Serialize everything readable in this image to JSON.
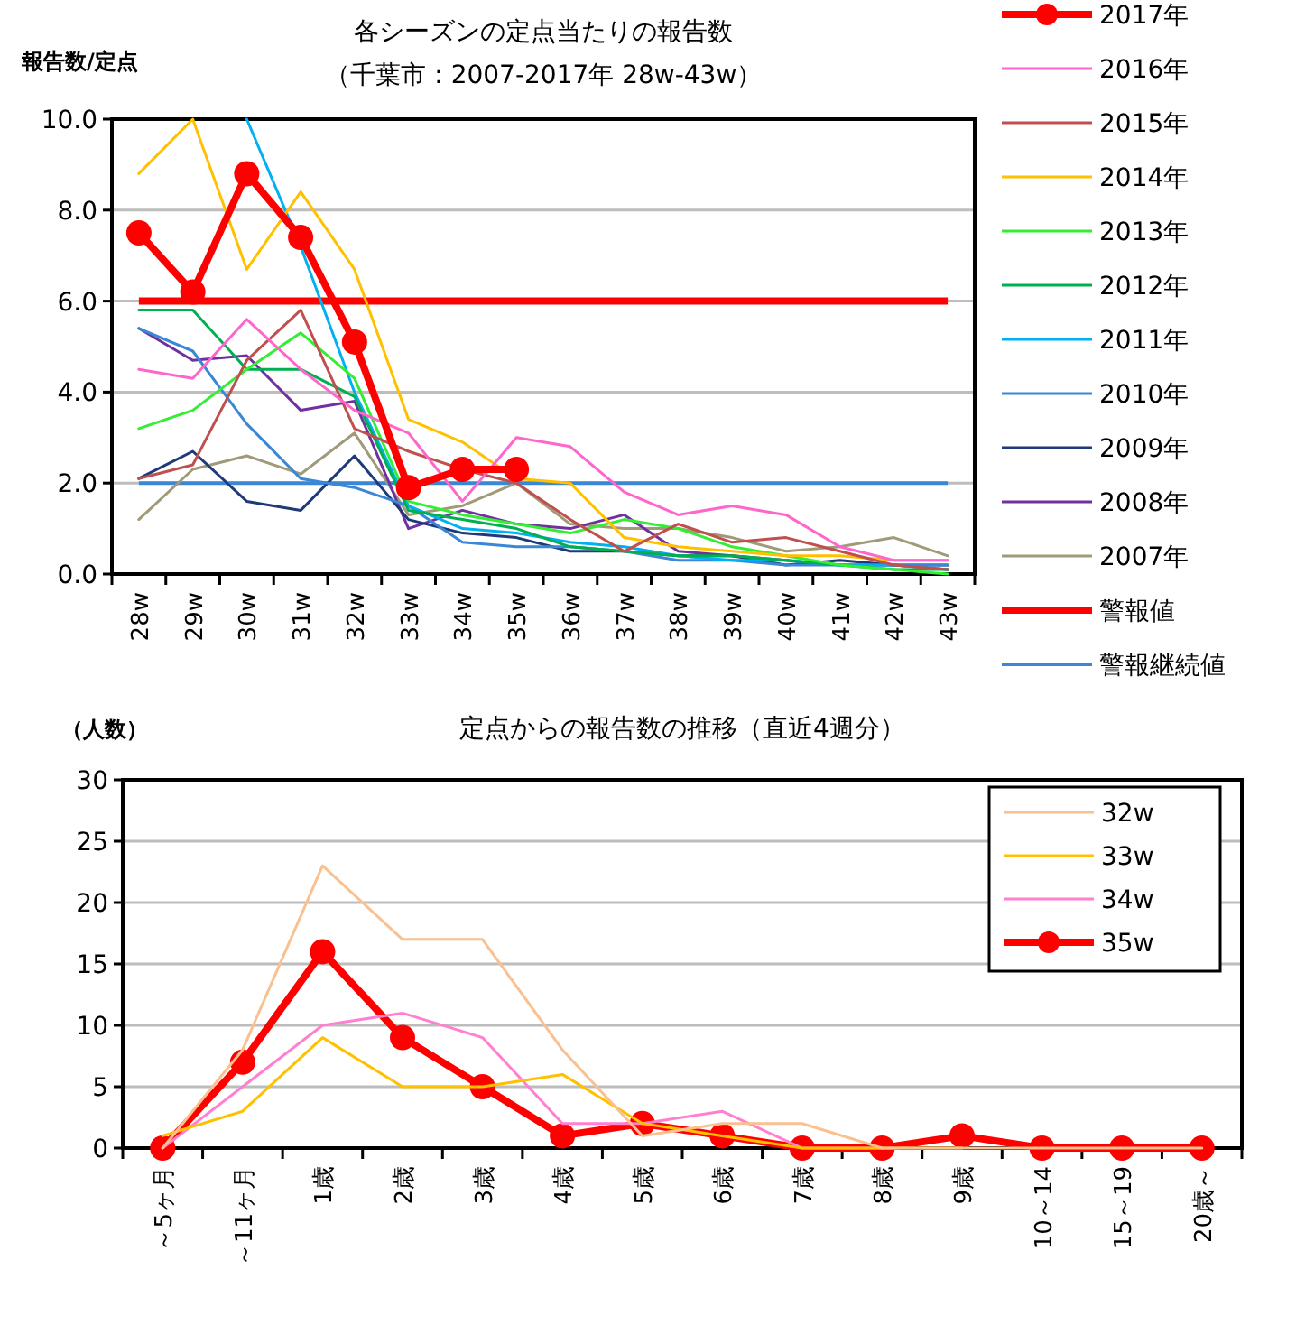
{
  "chart_data": [
    {
      "type": "line",
      "title": "各シーズンの定点当たりの報告数",
      "subtitle": "（千葉市：2007-2017年 28w-43w）",
      "ylabel": "報告数/定点",
      "categories": [
        "28w",
        "29w",
        "30w",
        "31w",
        "32w",
        "33w",
        "34w",
        "35w",
        "36w",
        "37w",
        "38w",
        "39w",
        "40w",
        "41w",
        "42w",
        "43w"
      ],
      "ylim": [
        0,
        10
      ],
      "yticks": [
        {
          "value": 0,
          "label": "0.0"
        },
        {
          "value": 2,
          "label": "2.0"
        },
        {
          "value": 4,
          "label": "4.0"
        },
        {
          "value": 6,
          "label": "6.0"
        },
        {
          "value": 8,
          "label": "8.0"
        },
        {
          "value": 10,
          "label": "10.0"
        }
      ],
      "grid": "y",
      "legend": "right",
      "series": [
        {
          "name": "2017年",
          "color": "#ff0000",
          "marker": "circle",
          "values": [
            7.5,
            6.2,
            8.8,
            7.4,
            5.1,
            1.9,
            2.3,
            2.3,
            null,
            null,
            null,
            null,
            null,
            null,
            null,
            null
          ]
        },
        {
          "name": "2016年",
          "color": "#ff66cc",
          "marker": "none",
          "values": [
            4.5,
            4.3,
            5.6,
            4.5,
            3.6,
            3.1,
            1.6,
            3.0,
            2.8,
            1.8,
            1.3,
            1.5,
            1.3,
            0.6,
            0.3,
            0.3
          ]
        },
        {
          "name": "2015年",
          "color": "#c0504d",
          "marker": "none",
          "values": [
            2.1,
            2.4,
            4.7,
            5.8,
            3.2,
            2.7,
            2.3,
            2.0,
            1.2,
            0.5,
            1.1,
            0.7,
            0.8,
            0.5,
            0.2,
            0.1
          ]
        },
        {
          "name": "2014年",
          "color": "#ffc000",
          "marker": "none",
          "values": [
            8.8,
            10.0,
            6.7,
            8.4,
            6.7,
            3.4,
            2.9,
            2.1,
            2.0,
            0.8,
            0.6,
            0.5,
            0.4,
            0.4,
            0.3,
            0.3
          ]
        },
        {
          "name": "2013年",
          "color": "#33ee33",
          "marker": "none",
          "values": [
            3.2,
            3.6,
            4.5,
            5.3,
            4.3,
            1.6,
            1.3,
            1.1,
            0.9,
            1.2,
            1.0,
            0.6,
            0.4,
            0.2,
            0.1,
            0.0
          ]
        },
        {
          "name": "2012年",
          "color": "#00b050",
          "marker": "none",
          "values": [
            5.8,
            5.8,
            4.5,
            4.5,
            3.9,
            1.4,
            1.2,
            1.0,
            0.6,
            0.5,
            0.4,
            0.4,
            0.3,
            0.2,
            0.1,
            0.1
          ]
        },
        {
          "name": "2011年",
          "color": "#00b0f0",
          "marker": "none",
          "values": [
            null,
            null,
            10.0,
            7.2,
            4.0,
            1.5,
            1.0,
            0.9,
            0.7,
            0.6,
            0.4,
            0.3,
            0.3,
            0.2,
            0.2,
            0.1
          ]
        },
        {
          "name": "2010年",
          "color": "#3a87d6",
          "marker": "none",
          "values": [
            5.4,
            4.9,
            3.3,
            2.1,
            1.9,
            1.5,
            0.7,
            0.6,
            0.6,
            0.5,
            0.3,
            0.3,
            0.2,
            0.2,
            0.2,
            0.2
          ]
        },
        {
          "name": "2009年",
          "color": "#1f3a78",
          "marker": "none",
          "values": [
            2.1,
            2.7,
            1.6,
            1.4,
            2.6,
            1.2,
            0.9,
            0.8,
            0.5,
            0.5,
            0.4,
            0.4,
            0.2,
            0.3,
            0.2,
            0.2
          ]
        },
        {
          "name": "2008年",
          "color": "#7030a0",
          "marker": "none",
          "values": [
            5.4,
            4.7,
            4.8,
            3.6,
            3.8,
            1.0,
            1.4,
            1.1,
            1.0,
            1.3,
            0.5,
            0.4,
            0.3,
            0.2,
            0.2,
            0.1
          ]
        },
        {
          "name": "2007年",
          "color": "#a09a78",
          "marker": "none",
          "values": [
            1.2,
            2.3,
            2.6,
            2.2,
            3.1,
            1.3,
            1.5,
            2.0,
            1.1,
            1.0,
            1.0,
            0.8,
            0.5,
            0.6,
            0.8,
            0.4
          ]
        }
      ],
      "ref_lines": [
        {
          "axis": "y",
          "value": 6,
          "label": "警報値",
          "color": "#ff0000"
        },
        {
          "axis": "y",
          "value": 2,
          "label": "警報継続値",
          "color": "#3a87d6"
        }
      ]
    },
    {
      "type": "line",
      "title": "定点からの報告数の推移（直近4週分）",
      "ylabel": "（人数）",
      "categories": [
        "～5ヶ月",
        "～11ヶ月",
        "1歳",
        "2歳",
        "3歳",
        "4歳",
        "5歳",
        "6歳",
        "7歳",
        "8歳",
        "9歳",
        "10～14",
        "15～19",
        "20歳～"
      ],
      "ylim": [
        0,
        30
      ],
      "yticks": [
        0,
        5,
        10,
        15,
        20,
        25,
        30
      ],
      "grid": "y",
      "legend": "top right",
      "series": [
        {
          "name": "32w",
          "color": "#fac090",
          "marker": "none",
          "values": [
            0,
            8,
            23,
            17,
            17,
            8,
            1,
            2,
            2,
            0,
            0,
            0,
            0,
            0
          ]
        },
        {
          "name": "33w",
          "color": "#ffc000",
          "marker": "none",
          "values": [
            1,
            3,
            9,
            5,
            5,
            6,
            2,
            1,
            0,
            0,
            0,
            null,
            null,
            null
          ]
        },
        {
          "name": "34w",
          "color": "#ff7fd0",
          "marker": "none",
          "values": [
            0,
            5,
            10,
            11,
            9,
            2,
            2,
            3,
            0,
            0,
            null,
            null,
            null,
            null
          ]
        },
        {
          "name": "35w",
          "color": "#ff0000",
          "marker": "circle",
          "values": [
            0,
            7,
            16,
            9,
            5,
            1,
            2,
            1,
            0,
            0,
            1,
            0,
            0,
            0
          ]
        }
      ]
    }
  ]
}
